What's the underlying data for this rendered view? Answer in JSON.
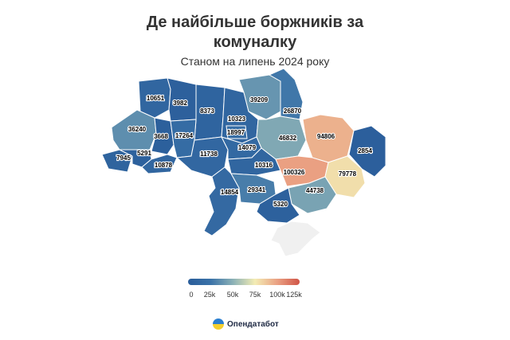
{
  "header": {
    "title_line1": "Де найбільше боржників за",
    "title_line2": "комуналку",
    "subtitle": "Станом на липень 2024 року"
  },
  "legend": {
    "ticks": [
      "0",
      "25k",
      "50k",
      "75k",
      "100k",
      "125k"
    ],
    "min": 0,
    "max": 125000,
    "colors": [
      "#2a5d9a",
      "#3a72a8",
      "#8ab0b6",
      "#f3ecb4",
      "#eaa183",
      "#d05447"
    ]
  },
  "regions": [
    {
      "name": "Volyn",
      "value": 10651
    },
    {
      "name": "Rivne",
      "value": 3982
    },
    {
      "name": "Zhytomyr",
      "value": 8373
    },
    {
      "name": "Kyiv Oblast",
      "value": 10323
    },
    {
      "name": "Kyiv City",
      "value": 18997
    },
    {
      "name": "Chernihiv",
      "value": 39209
    },
    {
      "name": "Sumy",
      "value": 26870
    },
    {
      "name": "Lviv",
      "value": 36240
    },
    {
      "name": "Ternopil",
      "value": 3668
    },
    {
      "name": "Khmelnytskyi",
      "value": 17264
    },
    {
      "name": "Poltava",
      "value": 46832
    },
    {
      "name": "Kharkiv",
      "value": 94806
    },
    {
      "name": "Luhansk",
      "value": 2854
    },
    {
      "name": "Zakarpattia",
      "value": 7945
    },
    {
      "name": "Ivano-Frankivsk",
      "value": 5291
    },
    {
      "name": "Chernivtsi",
      "value": 10878
    },
    {
      "name": "Vinnytsia",
      "value": 11738
    },
    {
      "name": "Cherkasy",
      "value": 14079
    },
    {
      "name": "Kirovohrad",
      "value": 10316
    },
    {
      "name": "Dnipropetrovsk",
      "value": 100326
    },
    {
      "name": "Donetsk",
      "value": 79778
    },
    {
      "name": "Odesa",
      "value": 14854
    },
    {
      "name": "Mykolaiv",
      "value": 29341
    },
    {
      "name": "Zaporizhzhia",
      "value": 44738
    },
    {
      "name": "Kherson",
      "value": 5320
    },
    {
      "name": "Crimea",
      "value": null
    }
  ],
  "no_data_color": "#f0f0f0",
  "brand": {
    "name": "Опендатабот"
  }
}
